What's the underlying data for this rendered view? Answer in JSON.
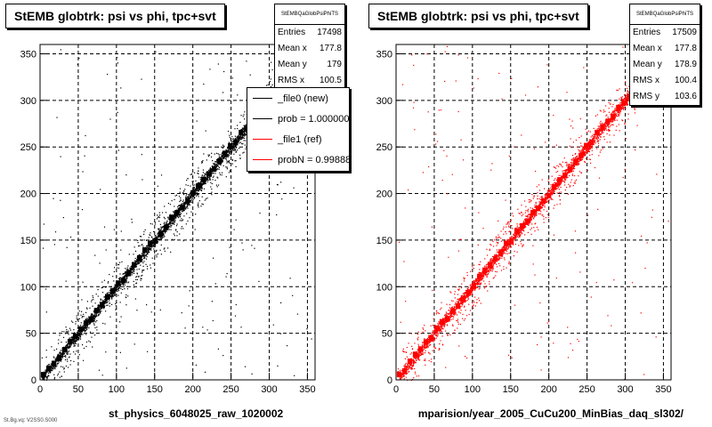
{
  "chart_data": [
    {
      "type": "scatter",
      "title": "StEMB globtrk: psi vs phi, tpc+svt",
      "xlabel": "st_physics_6048025_raw_1020002",
      "xlim": [
        0,
        360
      ],
      "ylim": [
        0,
        360
      ],
      "x_ticks": [
        0,
        50,
        100,
        150,
        200,
        250,
        300,
        350
      ],
      "y_ticks": [
        0,
        50,
        100,
        150,
        200,
        250,
        300,
        350
      ],
      "grid": true,
      "marker_color": "#000000",
      "stats": {
        "name": "StEMBQaGlobPsiPhiTS",
        "rows": [
          {
            "label": "Entries",
            "value": "17498"
          },
          {
            "label": "Mean x",
            "value": "177.8"
          },
          {
            "label": "Mean y",
            "value": "179"
          },
          {
            "label": "RMS x",
            "value": "100.5"
          }
        ]
      },
      "legend": [
        {
          "label": "_file0 (new)",
          "color": "#000000"
        },
        {
          "label": "prob = 1.000000",
          "color": "#000000"
        },
        {
          "label": "_file1 (ref)",
          "color": "#ff0000"
        },
        {
          "label": "probN = 0.998881",
          "color": "#ff0000"
        }
      ],
      "legend_position": "top-right",
      "series": [
        {
          "relation": "psi ≈ phi",
          "x_range": [
            0,
            360
          ],
          "y_range": [
            0,
            360
          ]
        }
      ]
    },
    {
      "type": "scatter",
      "title": "StEMB globtrk: psi vs phi, tpc+svt",
      "xlabel": "mparision/year_2005_CuCu200_MinBias_daq_sl302/",
      "xlim": [
        0,
        360
      ],
      "ylim": [
        0,
        360
      ],
      "x_ticks": [
        0,
        50,
        100,
        150,
        200,
        250,
        300,
        350
      ],
      "y_ticks": [
        0,
        50,
        100,
        150,
        200,
        250,
        300,
        350
      ],
      "grid": true,
      "marker_color": "#ff0000",
      "stats": {
        "name": "StEMBQaGlobPsiPhiTS",
        "rows": [
          {
            "label": "Entries",
            "value": "17509"
          },
          {
            "label": "Mean x",
            "value": "177.8"
          },
          {
            "label": "Mean y",
            "value": "178.9"
          },
          {
            "label": "RMS x",
            "value": "100.4"
          },
          {
            "label": "RMS y",
            "value": "103.6"
          }
        ]
      },
      "series": [
        {
          "relation": "psi ≈ phi",
          "x_range": [
            0,
            360
          ],
          "y_range": [
            0,
            360
          ]
        }
      ]
    }
  ],
  "footer": "St.Bg.vq: V2SS0.S000"
}
